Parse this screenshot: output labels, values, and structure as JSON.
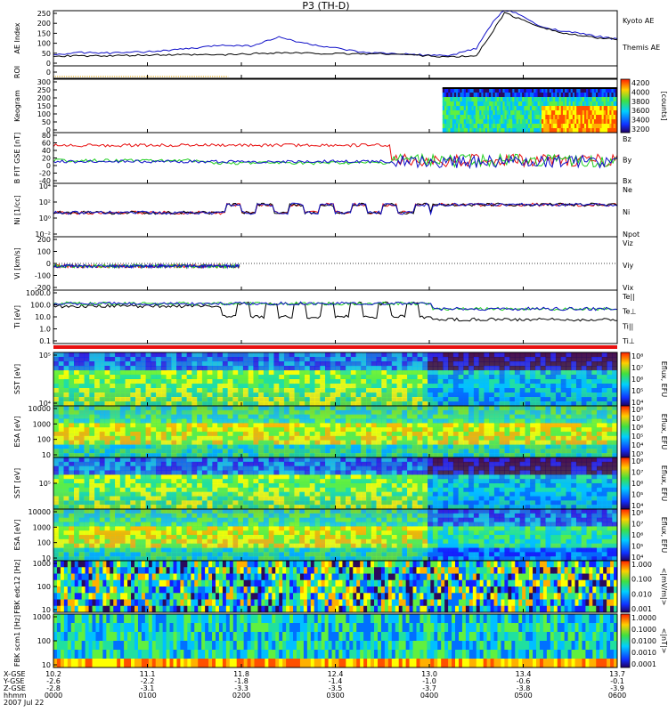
{
  "title": "P3 (TH-D)",
  "colors": {
    "blue": "#1010c8",
    "red": "#e81010",
    "green": "#20d020",
    "black": "#000000",
    "orange": "#e0a000"
  },
  "chart_data": [
    {
      "type": "line",
      "panel": "ae",
      "ylabel": "AE Index",
      "yticks": [
        "250",
        "200",
        "150",
        "100",
        "50",
        "0"
      ],
      "ylim": [
        0,
        250
      ],
      "series": [
        {
          "name": "Kyoto AE",
          "color": "#1010c8",
          "x": [
            0,
            0.05,
            0.1,
            0.15,
            0.2,
            0.25,
            0.3,
            0.35,
            0.4,
            0.45,
            0.5,
            0.55,
            0.6,
            0.65,
            0.7,
            0.75,
            0.78,
            0.8,
            0.83,
            0.86,
            0.9,
            0.95,
            1.0
          ],
          "values": [
            50,
            60,
            58,
            62,
            70,
            80,
            95,
            90,
            130,
            100,
            80,
            60,
            55,
            50,
            45,
            80,
            200,
            255,
            230,
            180,
            160,
            140,
            120
          ]
        },
        {
          "name": "Themis AE",
          "color": "#000000",
          "x": [
            0,
            0.1,
            0.2,
            0.3,
            0.4,
            0.5,
            0.6,
            0.7,
            0.75,
            0.78,
            0.8,
            0.85,
            0.9,
            0.95,
            1.0
          ],
          "values": [
            45,
            45,
            50,
            50,
            60,
            55,
            55,
            40,
            45,
            160,
            240,
            190,
            150,
            130,
            120
          ]
        }
      ]
    },
    {
      "type": "line",
      "panel": "roi",
      "ylabel": "ROI",
      "yticks": [
        "0"
      ]
    },
    {
      "type": "heatmap",
      "panel": "keogram",
      "ylabel": "Keogram",
      "yticks": [
        "300",
        "250",
        "200",
        "150",
        "100",
        "50",
        "0"
      ],
      "colorbar_ticks": [
        "4200",
        "4000",
        "3800",
        "3600",
        "3400",
        "3200"
      ],
      "colorbar_label": "[counts]"
    },
    {
      "type": "line",
      "panel": "bfield",
      "ylabel": "B FIT GSE [nT]",
      "yticks": [
        "80",
        "60",
        "40",
        "20",
        "0",
        "-20",
        "-40"
      ],
      "ylim": [
        -40,
        80
      ],
      "series": [
        {
          "name": "Bz",
          "color": "#e81010"
        },
        {
          "name": "By",
          "color": "#20d020"
        },
        {
          "name": "Bx",
          "color": "#1010c8"
        }
      ]
    },
    {
      "type": "line",
      "panel": "density",
      "ylabel": "Ni [1/cc]",
      "yticks": [
        "10⁴",
        "10²",
        "10⁰",
        "10⁻²"
      ],
      "series": [
        {
          "name": "Ne",
          "color": "#e81010"
        },
        {
          "name": "Ni",
          "color": "#000000"
        },
        {
          "name": "Npot",
          "color": "#1010c8"
        }
      ]
    },
    {
      "type": "line",
      "panel": "velocity",
      "ylabel": "Vi [km/s]",
      "yticks": [
        "200",
        "100",
        "0",
        "-100",
        "-200"
      ],
      "ylim": [
        -250,
        250
      ],
      "series": [
        {
          "name": "Viz",
          "color": "#e81010"
        },
        {
          "name": "Viy",
          "color": "#20d020"
        },
        {
          "name": "Vix",
          "color": "#1010c8"
        }
      ]
    },
    {
      "type": "line",
      "panel": "temperature",
      "ylabel": "Ti [eV]",
      "yticks": [
        "1000.0",
        "100.0",
        "10.0",
        "1.0",
        "0.1"
      ],
      "series": [
        {
          "name": "Te||",
          "color": "#000000"
        },
        {
          "name": "Te⊥",
          "color": "#e81010"
        },
        {
          "name": "Ti||",
          "color": "#20d020"
        },
        {
          "name": "Ti⊥",
          "color": "#1010c8"
        }
      ]
    },
    {
      "type": "heatmap",
      "panel": "sst_e",
      "ylabel": "SST [eV]",
      "yticks": [
        "10⁵",
        "10⁴"
      ],
      "colorbar_ticks": [
        "10⁸",
        "10⁷",
        "10⁶",
        "10⁵",
        "10⁴"
      ],
      "colorbar_label": "Eflux, EFU"
    },
    {
      "type": "heatmap",
      "panel": "esa_e",
      "ylabel": "ESA [eV]",
      "yticks": [
        "10000",
        "1000",
        "100",
        "10"
      ],
      "colorbar_ticks": [
        "10⁸",
        "10⁷",
        "10⁶",
        "10⁵",
        "10⁴",
        "10³"
      ],
      "colorbar_label": "Eflux, EFU"
    },
    {
      "type": "heatmap",
      "panel": "sst_i",
      "ylabel": "SST [eV]",
      "yticks": [
        "10⁵"
      ],
      "colorbar_ticks": [
        "10⁸",
        "10⁷",
        "10⁶",
        "10⁵",
        "10⁴"
      ],
      "colorbar_label": "Eflux, EFU"
    },
    {
      "type": "heatmap",
      "panel": "esa_i",
      "ylabel": "ESA [eV]",
      "yticks": [
        "10000",
        "1000",
        "100",
        "10"
      ],
      "colorbar_ticks": [
        "10⁸",
        "10⁷",
        "10⁶",
        "10⁵",
        "10⁴"
      ],
      "colorbar_label": "Eflux, EFU"
    },
    {
      "type": "heatmap",
      "panel": "fbk_e",
      "ylabel": "FBK edc12 [Hz]",
      "yticks": [
        "1000",
        "100",
        "10"
      ],
      "colorbar_ticks": [
        "1.000",
        "0.100",
        "0.010",
        "0.001"
      ],
      "colorbar_label": "<|mV/m|>"
    },
    {
      "type": "heatmap",
      "panel": "fbk_b",
      "ylabel": "FBK scm1 [Hz]",
      "yticks": [
        "1000",
        "100",
        "10"
      ],
      "colorbar_ticks": [
        "1.0000",
        "0.1000",
        "0.0100",
        "0.0010",
        "0.0001"
      ],
      "colorbar_label": "<|nT|>"
    }
  ],
  "xaxis": {
    "row_labels": [
      "X-GSE",
      "Y-GSE",
      "Z-GSE",
      "hhmm",
      "2007 Jul 22"
    ],
    "ticks": [
      {
        "v": [
          "10.2",
          "-2.6",
          "-2.8",
          "0000"
        ]
      },
      {
        "v": [
          "11.1",
          "-2.2",
          "-3.1",
          "0100"
        ]
      },
      {
        "v": [
          "11.8",
          "-1.8",
          "-3.3",
          "0200"
        ]
      },
      {
        "v": [
          "12.4",
          "-1.4",
          "-3.5",
          "0300"
        ]
      },
      {
        "v": [
          "13.0",
          "-1.0",
          "-3.7",
          "0400"
        ]
      },
      {
        "v": [
          "13.4",
          "-0.6",
          "-3.8",
          "0500"
        ]
      },
      {
        "v": [
          "13.7",
          "-0.1",
          "-3.9",
          "0600"
        ]
      }
    ]
  }
}
